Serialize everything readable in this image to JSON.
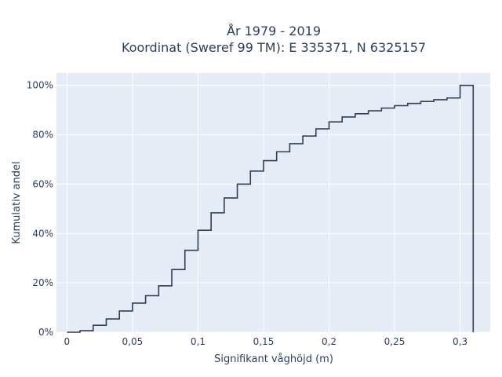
{
  "chart_data": {
    "type": "line",
    "line_shape": "step",
    "title_line1": "År 1979 - 2019",
    "title_line2": "Koordinat (Sweref 99 TM): E 335371, N 6325157",
    "xlabel": "Signifikant våghöjd (m)",
    "ylabel": "Kumulativ andel",
    "xlim": [
      -0.008,
      0.323
    ],
    "ylim": [
      0,
      1.05
    ],
    "x_ticks": [
      0,
      0.05,
      0.1,
      0.15,
      0.2,
      0.25,
      0.3
    ],
    "x_tick_labels": [
      "0",
      "0,05",
      "0,1",
      "0,15",
      "0,2",
      "0,25",
      "0,3"
    ],
    "y_ticks": [
      0,
      0.2,
      0.4,
      0.6,
      0.8,
      1.0
    ],
    "y_tick_labels": [
      "0%",
      "20%",
      "40%",
      "60%",
      "80%",
      "100%"
    ],
    "grid": true,
    "background_color": "#e5ecf6",
    "line_color": "#2f3e52",
    "x": [
      0,
      0.01,
      0.02,
      0.03,
      0.04,
      0.05,
      0.06,
      0.07,
      0.08,
      0.09,
      0.1,
      0.11,
      0.12,
      0.13,
      0.14,
      0.15,
      0.16,
      0.17,
      0.18,
      0.19,
      0.2,
      0.21,
      0.22,
      0.23,
      0.24,
      0.25,
      0.26,
      0.27,
      0.28,
      0.29,
      0.3,
      0.31
    ],
    "y": [
      0,
      0.006,
      0.028,
      0.054,
      0.086,
      0.118,
      0.148,
      0.188,
      0.254,
      0.332,
      0.413,
      0.484,
      0.544,
      0.6,
      0.653,
      0.695,
      0.731,
      0.764,
      0.795,
      0.824,
      0.852,
      0.872,
      0.885,
      0.897,
      0.908,
      0.918,
      0.927,
      0.935,
      0.942,
      0.949,
      1.0,
      0.0
    ]
  }
}
